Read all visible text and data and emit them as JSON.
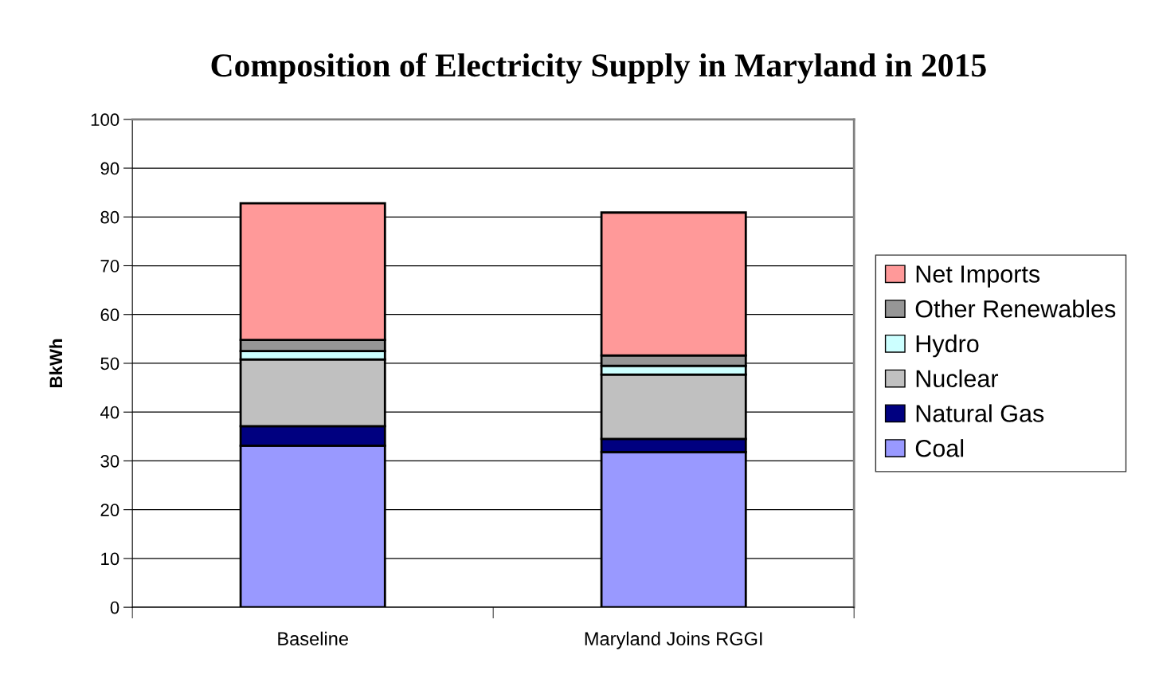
{
  "chart_data": {
    "type": "bar",
    "stacked": true,
    "title": "Composition of Electricity Supply in Maryland in 2015",
    "ylabel": "BkWh",
    "categories": [
      "Baseline",
      "Maryland Joins RGGI"
    ],
    "series": [
      {
        "name": "Coal",
        "color": "#9999ff",
        "values": [
          33.1,
          31.8
        ]
      },
      {
        "name": "Natural Gas",
        "color": "#000080",
        "values": [
          4.0,
          2.7
        ]
      },
      {
        "name": "Nuclear",
        "color": "#c0c0c0",
        "values": [
          13.7,
          13.2
        ]
      },
      {
        "name": "Hydro",
        "color": "#ccffff",
        "values": [
          1.7,
          1.8
        ]
      },
      {
        "name": "Other Renewables",
        "color": "#969696",
        "values": [
          2.3,
          2.1
        ]
      },
      {
        "name": "Net Imports",
        "color": "#ff9999",
        "values": [
          28.0,
          29.3
        ]
      }
    ],
    "ylim": [
      0,
      100
    ],
    "yticks": [
      0,
      10,
      20,
      30,
      40,
      50,
      60,
      70,
      80,
      90,
      100
    ],
    "grid": "y",
    "legend": "right"
  }
}
